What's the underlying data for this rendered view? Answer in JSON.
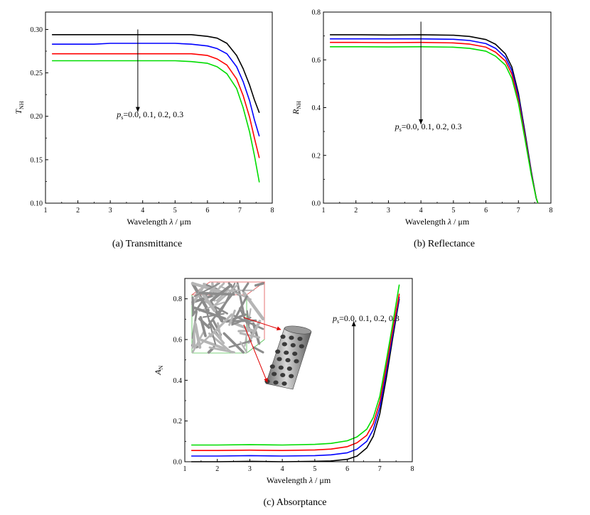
{
  "chart_data": [
    {
      "id": "a",
      "type": "line",
      "caption": "(a) Transmittance",
      "xlabel": "Wavelength",
      "xlabel_symbol": "λ",
      "xlabel_unit": "/ μm",
      "ylabel_symbol": "T",
      "ylabel_sub": "NH",
      "xlim": [
        1,
        8
      ],
      "ylim": [
        0.1,
        0.32
      ],
      "xticks": [
        1,
        2,
        3,
        4,
        5,
        6,
        7,
        8
      ],
      "yticks": [
        0.1,
        0.15,
        0.2,
        0.25,
        0.3
      ],
      "ytick_labels": [
        "0.10",
        "0.15",
        "0.20",
        "0.25",
        "0.30"
      ],
      "annotation": {
        "prefix": "p",
        "prefix_sub": "s",
        "text": "=0.0, 0.1, 0.2, 0.3",
        "arrow_x": 3.85,
        "arrow_from_y": 0.3,
        "arrow_to_y": 0.205,
        "label_x": 3.2,
        "label_y": 0.199
      },
      "x": [
        1.2,
        2.0,
        2.5,
        3.0,
        3.5,
        4.0,
        4.5,
        5.0,
        5.5,
        6.0,
        6.3,
        6.6,
        6.9,
        7.1,
        7.3,
        7.45,
        7.6
      ],
      "series": [
        {
          "name": "0.0",
          "color": "#000000",
          "values": [
            0.294,
            0.294,
            0.294,
            0.294,
            0.294,
            0.294,
            0.294,
            0.294,
            0.294,
            0.292,
            0.29,
            0.284,
            0.27,
            0.255,
            0.236,
            0.219,
            0.204
          ]
        },
        {
          "name": "0.1",
          "color": "#0000ff",
          "values": [
            0.283,
            0.283,
            0.283,
            0.284,
            0.284,
            0.284,
            0.284,
            0.284,
            0.283,
            0.281,
            0.278,
            0.272,
            0.257,
            0.24,
            0.218,
            0.196,
            0.177
          ]
        },
        {
          "name": "0.2",
          "color": "#ff0000",
          "values": [
            0.272,
            0.272,
            0.272,
            0.272,
            0.272,
            0.272,
            0.272,
            0.272,
            0.272,
            0.27,
            0.266,
            0.259,
            0.243,
            0.224,
            0.199,
            0.175,
            0.152
          ]
        },
        {
          "name": "0.3",
          "color": "#00dd00",
          "values": [
            0.264,
            0.264,
            0.264,
            0.264,
            0.264,
            0.264,
            0.264,
            0.264,
            0.263,
            0.261,
            0.257,
            0.249,
            0.232,
            0.21,
            0.182,
            0.155,
            0.124
          ]
        }
      ]
    },
    {
      "id": "b",
      "type": "line",
      "caption": "(b) Reflectance",
      "xlabel": "Wavelength",
      "xlabel_symbol": "λ",
      "xlabel_unit": "/ μm",
      "ylabel_symbol": "R",
      "ylabel_sub": "NH",
      "xlim": [
        1,
        8
      ],
      "ylim": [
        0.0,
        0.8
      ],
      "xticks": [
        1,
        2,
        3,
        4,
        5,
        6,
        7,
        8
      ],
      "yticks": [
        0.0,
        0.2,
        0.4,
        0.6,
        0.8
      ],
      "ytick_labels": [
        "0.0",
        "0.2",
        "0.4",
        "0.6",
        "0.8"
      ],
      "annotation": {
        "prefix": "p",
        "prefix_sub": "s",
        "text": "=0.0, 0.1, 0.2, 0.3",
        "arrow_x": 4.0,
        "arrow_from_y": 0.76,
        "arrow_to_y": 0.33,
        "label_x": 3.2,
        "label_y": 0.31
      },
      "x": [
        1.2,
        2.0,
        3.0,
        4.0,
        5.0,
        5.5,
        6.0,
        6.3,
        6.6,
        6.8,
        7.0,
        7.2,
        7.4,
        7.55,
        7.6
      ],
      "series": [
        {
          "name": "0.0",
          "color": "#000000",
          "values": [
            0.705,
            0.705,
            0.704,
            0.705,
            0.703,
            0.698,
            0.685,
            0.665,
            0.625,
            0.57,
            0.46,
            0.3,
            0.13,
            0.02,
            0.0
          ]
        },
        {
          "name": "0.1",
          "color": "#0000ff",
          "values": [
            0.688,
            0.688,
            0.688,
            0.688,
            0.686,
            0.681,
            0.668,
            0.648,
            0.61,
            0.555,
            0.447,
            0.29,
            0.125,
            0.02,
            0.0
          ]
        },
        {
          "name": "0.2",
          "color": "#ff0000",
          "values": [
            0.673,
            0.673,
            0.672,
            0.673,
            0.671,
            0.666,
            0.653,
            0.632,
            0.595,
            0.54,
            0.432,
            0.28,
            0.12,
            0.02,
            0.0
          ]
        },
        {
          "name": "0.3",
          "color": "#00dd00",
          "values": [
            0.655,
            0.655,
            0.654,
            0.655,
            0.653,
            0.648,
            0.636,
            0.615,
            0.578,
            0.522,
            0.418,
            0.27,
            0.115,
            0.02,
            0.0
          ]
        }
      ]
    },
    {
      "id": "c",
      "type": "line",
      "caption": "(c) Absorptance",
      "xlabel": "Wavelength",
      "xlabel_symbol": "λ",
      "xlabel_unit": "/ μm",
      "ylabel_symbol": "A",
      "ylabel_sub": "N",
      "xlim": [
        1,
        8
      ],
      "ylim": [
        0.0,
        0.9
      ],
      "xticks": [
        1,
        2,
        3,
        4,
        5,
        6,
        7,
        8
      ],
      "yticks": [
        0.0,
        0.2,
        0.4,
        0.6,
        0.8
      ],
      "ytick_labels": [
        "0.0",
        "0.2",
        "0.4",
        "0.6",
        "0.8"
      ],
      "annotation": {
        "prefix": "p",
        "prefix_sub": "s",
        "text": "=0.0, 0.1, 0.2, 0.3",
        "arrow_x": 6.2,
        "arrow_from_y": 0.0,
        "arrow_to_y": 0.69,
        "label_x": 5.55,
        "label_y": 0.69
      },
      "x": [
        1.2,
        2.0,
        3.0,
        4.0,
        5.0,
        5.5,
        6.0,
        6.3,
        6.6,
        6.8,
        7.0,
        7.2,
        7.4,
        7.6
      ],
      "series": [
        {
          "name": "0.0",
          "color": "#000000",
          "values": [
            0.0,
            0.0,
            0.002,
            0.0,
            0.002,
            0.004,
            0.012,
            0.028,
            0.068,
            0.125,
            0.235,
            0.41,
            0.61,
            0.8
          ]
        },
        {
          "name": "0.1",
          "color": "#0000ff",
          "values": [
            0.028,
            0.028,
            0.03,
            0.028,
            0.03,
            0.034,
            0.044,
            0.062,
            0.1,
            0.158,
            0.265,
            0.44,
            0.63,
            0.81
          ]
        },
        {
          "name": "0.2",
          "color": "#ff0000",
          "values": [
            0.055,
            0.055,
            0.057,
            0.055,
            0.058,
            0.062,
            0.074,
            0.093,
            0.13,
            0.187,
            0.293,
            0.465,
            0.65,
            0.825
          ]
        },
        {
          "name": "0.3",
          "color": "#00dd00",
          "values": [
            0.082,
            0.082,
            0.084,
            0.082,
            0.085,
            0.09,
            0.103,
            0.122,
            0.16,
            0.217,
            0.322,
            0.495,
            0.68,
            0.87
          ]
        }
      ]
    }
  ],
  "inset": {
    "description_icon": "fiber-network-3d-render",
    "pore_icon": "perforated-cylinder-render",
    "frame_color": "#e05050",
    "frame_color_2": "#50c050",
    "arrow_color": "#e00000"
  }
}
